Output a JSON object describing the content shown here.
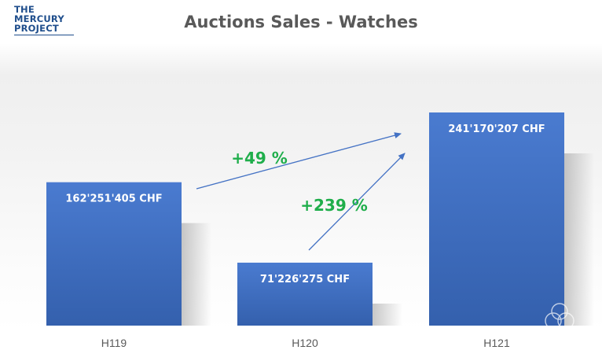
{
  "logo": {
    "lines": [
      "THE",
      "MERCURY",
      "PROJECT"
    ]
  },
  "chart_data": {
    "type": "bar",
    "title": "Auctions Sales - Watches",
    "categories": [
      "H119",
      "H120",
      "H121"
    ],
    "values": [
      162251405,
      71226275,
      241170207
    ],
    "value_labels": [
      "162'251'405 CHF",
      "71'226'275 CHF",
      "241'170'207 CHF"
    ],
    "ylim": [
      0,
      241170207
    ],
    "bar_color": "#4472c4",
    "annotations": [
      {
        "label": "+49 %",
        "from": "H119",
        "to": "H121",
        "color": "#1fae4b"
      },
      {
        "label": "+239 %",
        "from": "H120",
        "to": "H121",
        "color": "#1fae4b"
      }
    ],
    "grid": false,
    "legend": "none"
  }
}
